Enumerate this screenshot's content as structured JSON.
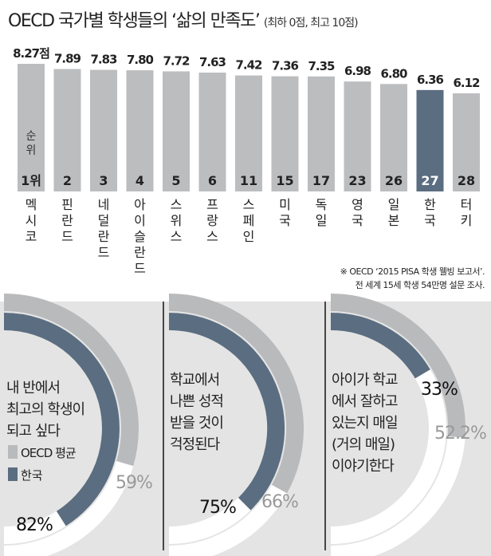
{
  "chart_data": [
    {
      "type": "bar",
      "title": "OECD 국가별 학생들의 ‘삶의 만족도’",
      "subtitle": "(최하 0점, 최고 10점)",
      "first_value_label": "8.27점",
      "rank_caption": "순위",
      "categories": [
        "멕시코",
        "핀란드",
        "네덜란드",
        "아이슬란드",
        "스위스",
        "프랑스",
        "스페인",
        "미국",
        "독일",
        "영국",
        "일본",
        "한국",
        "터키"
      ],
      "values": [
        8.27,
        7.89,
        7.83,
        7.8,
        7.72,
        7.63,
        7.42,
        7.36,
        7.35,
        6.98,
        6.8,
        6.36,
        6.12
      ],
      "value_labels": [
        "8.27점",
        "7.89",
        "7.83",
        "7.80",
        "7.72",
        "7.63",
        "7.42",
        "7.36",
        "7.35",
        "6.98",
        "6.80",
        "6.36",
        "6.12"
      ],
      "ranks": [
        "1위",
        "2",
        "3",
        "4",
        "5",
        "6",
        "11",
        "15",
        "17",
        "23",
        "26",
        "27",
        "28"
      ],
      "highlight": "한국",
      "xlabel": "",
      "ylabel": "",
      "ylim": [
        0,
        10
      ]
    },
    {
      "type": "pie",
      "title": "내 반에서 최고의 학생이 되고 싶다",
      "title_lines": [
        "내 반에서",
        "최고의 학생이",
        "되고 싶다"
      ],
      "series": [
        {
          "name": "OECD 평균",
          "value": 59,
          "label": "59%"
        },
        {
          "name": "한국",
          "value": 82,
          "label": "82%"
        }
      ]
    },
    {
      "type": "pie",
      "title": "학교에서 나쁜 성적 받을 것이 걱정된다",
      "title_lines": [
        "학교에서",
        "나쁜 성적",
        "받을 것이",
        "걱정된다"
      ],
      "series": [
        {
          "name": "OECD 평균",
          "value": 66,
          "label": "66%"
        },
        {
          "name": "한국",
          "value": 75,
          "label": "75%"
        }
      ]
    },
    {
      "type": "pie",
      "title": "아이가 학교에서 잘하고 있는지 매일(거의 매일) 이야기한다",
      "title_lines": [
        "아이가 학교",
        "에서 잘하고",
        "있는지 매일",
        "(거의 매일)",
        "이야기한다"
      ],
      "series": [
        {
          "name": "OECD 평균",
          "value": 52.2,
          "label": "52.2%"
        },
        {
          "name": "한국",
          "value": 33,
          "label": "33%"
        }
      ]
    }
  ],
  "legend": [
    {
      "name": "OECD 평균",
      "color": "#b9babc"
    },
    {
      "name": "한국",
      "color": "#5b6d80"
    }
  ],
  "note": [
    "※ OECD ‘2015 PISA 학생 웰빙 보고서’.",
    "전 세계 15세 학생 54만명 설문 조사."
  ],
  "colors": {
    "bar": "#bcbdbf",
    "highlight": "#5b6d80",
    "oecd": "#b9babc",
    "korea": "#5b6d80",
    "track": "#ffffff",
    "panel": "#e4e4e4"
  }
}
